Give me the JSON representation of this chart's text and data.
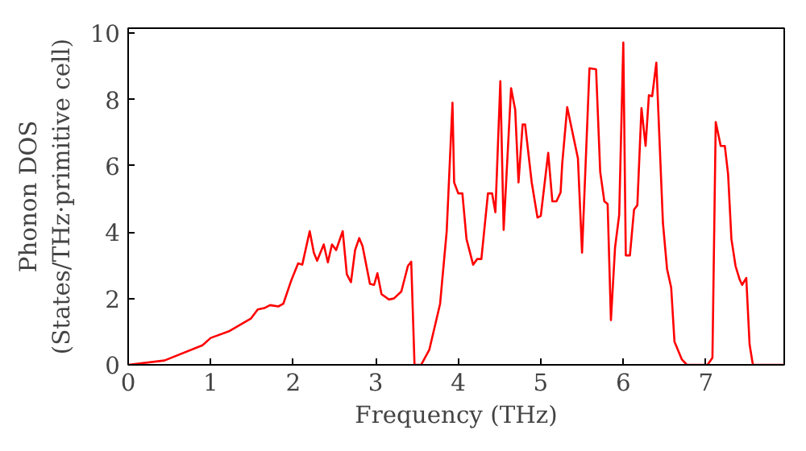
{
  "chart_data": {
    "type": "line",
    "xlabel": "Frequency (THz)",
    "ylabel": "Phonon DOS\n(States/THz·primitive cell)",
    "x": [
      0,
      0.44,
      0.9,
      1.0,
      1.23,
      1.49,
      1.57,
      1.65,
      1.72,
      1.82,
      1.88,
      1.98,
      2.06,
      2.11,
      2.2,
      2.25,
      2.29,
      2.37,
      2.42,
      2.47,
      2.52,
      2.6,
      2.65,
      2.7,
      2.75,
      2.8,
      2.84,
      2.93,
      2.98,
      3.02,
      3.07,
      3.16,
      3.22,
      3.31,
      3.39,
      3.43,
      3.47,
      3.55,
      3.65,
      3.78,
      3.86,
      3.93,
      3.95,
      4.0,
      4.05,
      4.1,
      4.18,
      4.23,
      4.28,
      4.36,
      4.41,
      4.45,
      4.51,
      4.55,
      4.64,
      4.69,
      4.73,
      4.78,
      4.81,
      4.89,
      4.96,
      5.0,
      5.09,
      5.14,
      5.19,
      5.24,
      5.26,
      5.32,
      5.45,
      5.5,
      5.59,
      5.67,
      5.72,
      5.77,
      5.81,
      5.85,
      5.9,
      5.95,
      6.0,
      6.03,
      6.08,
      6.13,
      6.17,
      6.22,
      6.27,
      6.31,
      6.35,
      6.4,
      6.48,
      6.53,
      6.58,
      6.62,
      6.71,
      6.77,
      7.02,
      7.08,
      7.12,
      7.18,
      7.23,
      7.27,
      7.31,
      7.36,
      7.41,
      7.44,
      7.49,
      7.53,
      7.57,
      7.95
    ],
    "series": [
      {
        "color": "#ff0000",
        "values": [
          0,
          0.13,
          0.59,
          0.81,
          1.02,
          1.4,
          1.67,
          1.71,
          1.8,
          1.76,
          1.84,
          2.57,
          3.06,
          3.02,
          4.03,
          3.38,
          3.14,
          3.63,
          3.09,
          3.63,
          3.46,
          4.03,
          2.73,
          2.49,
          3.46,
          3.82,
          3.58,
          2.44,
          2.41,
          2.76,
          2.13,
          1.97,
          2.0,
          2.21,
          2.98,
          3.11,
          0,
          0,
          0.46,
          1.84,
          4.03,
          7.9,
          5.5,
          5.17,
          5.17,
          3.79,
          3.02,
          3.19,
          3.19,
          5.17,
          5.17,
          4.6,
          8.55,
          4.07,
          8.34,
          7.69,
          5.5,
          7.25,
          7.25,
          5.5,
          4.44,
          4.49,
          6.39,
          4.93,
          4.93,
          5.2,
          6.07,
          7.77,
          6.23,
          3.38,
          8.94,
          8.91,
          5.82,
          4.93,
          4.85,
          1.35,
          3.54,
          4.52,
          9.72,
          3.3,
          3.3,
          4.68,
          4.81,
          7.74,
          6.6,
          8.13,
          8.1,
          9.11,
          4.28,
          2.89,
          2.33,
          0.7,
          0.16,
          0,
          0,
          0.21,
          7.32,
          6.6,
          6.6,
          5.74,
          3.79,
          2.98,
          2.57,
          2.41,
          2.62,
          0.62,
          0,
          0
        ]
      }
    ],
    "xlim": [
      0,
      7.95
    ],
    "ylim": [
      0,
      10.15
    ],
    "xticks": [
      0,
      1,
      2,
      3,
      4,
      5,
      6,
      7
    ],
    "yticks": [
      0,
      2,
      4,
      6,
      8,
      10
    ],
    "grid": false,
    "line_style": "solid"
  }
}
